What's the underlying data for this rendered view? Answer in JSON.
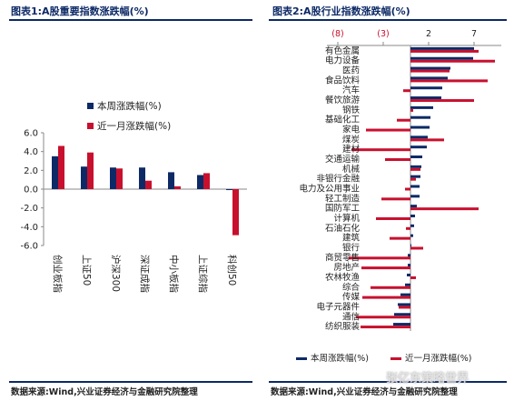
{
  "panels": {
    "left_title": "图表1:A股重要指数涨跌幅(%)",
    "right_title": "图表2:A股行业指数涨跌幅(%)",
    "left_source": "数据来源:Wind,兴业证券经济与金融研究院整理",
    "right_source": "数据来源:Wind,兴业证券经济与金融研究院整理",
    "watermark": "张亿东策略世界"
  },
  "colors": {
    "week": "#0d2a66",
    "month": "#c8102e",
    "axis": "#8a8a8a",
    "accent": "#0d2a66"
  },
  "chart_data": [
    {
      "type": "bar",
      "title": "",
      "categories": [
        "创业板指",
        "上证50",
        "沪深300",
        "深证成指",
        "中小板指",
        "上证综指",
        "科创50"
      ],
      "series": [
        {
          "name": "本周涨跌幅(%)",
          "values": [
            3.5,
            2.4,
            2.3,
            2.3,
            1.8,
            1.5,
            -0.1
          ]
        },
        {
          "name": "近一月涨跌幅(%)",
          "values": [
            4.6,
            3.9,
            2.2,
            0.9,
            0.3,
            1.7,
            -4.9
          ]
        }
      ],
      "yticks": [
        "6.0",
        "4.0",
        "2.0",
        "0.0",
        "-2.0",
        "-4.0",
        "-6.0"
      ],
      "ylim": [
        -6,
        6
      ],
      "legend": "upper-left"
    },
    {
      "type": "bar",
      "orientation": "horizontal",
      "categories": [
        "有色金属",
        "电力设备",
        "医药",
        "食品饮料",
        "汽车",
        "餐饮旅游",
        "钢铁",
        "基础化工",
        "家电",
        "煤炭",
        "建材",
        "交通运输",
        "机械",
        "非银行金融",
        "电力及公用事业",
        "轻工制造",
        "国防军工",
        "计算机",
        "石油石化",
        "建筑",
        "银行",
        "商贸零售",
        "房地产",
        "农林牧渔",
        "综合",
        "传媒",
        "电子元器件",
        "通信",
        "纺织服装"
      ],
      "series": [
        {
          "name": "本周涨跌幅(%)",
          "values": [
            7.0,
            6.9,
            4.4,
            4.1,
            3.5,
            3.4,
            2.5,
            2.2,
            2.1,
            1.9,
            1.8,
            1.3,
            1.2,
            1.1,
            1.0,
            1.0,
            0.7,
            0.5,
            0.4,
            0.3,
            0.1,
            -0.3,
            -0.3,
            -0.4,
            -0.6,
            -1.1,
            -1.4,
            -1.8,
            -1.9
          ]
        },
        {
          "name": "近一月涨跌幅(%)",
          "values": [
            7.5,
            9.3,
            4.3,
            8.5,
            -0.8,
            7.0,
            0.3,
            -1.5,
            -4.9,
            3.7,
            -6.5,
            -2.8,
            1.1,
            0.6,
            -0.6,
            -3.2,
            7.5,
            -3.8,
            -0.5,
            -2.3,
            1.4,
            -6.8,
            -5.4,
            0.6,
            -4.4,
            -5.3,
            -1.3,
            -6.0,
            -5.5
          ]
        }
      ],
      "xticks": [
        "(8)",
        "(3)",
        "2",
        "7"
      ],
      "xtick_values": [
        -8,
        -3,
        2,
        7
      ],
      "xlim": [
        -9.2,
        10
      ],
      "legend": "bottom"
    }
  ]
}
